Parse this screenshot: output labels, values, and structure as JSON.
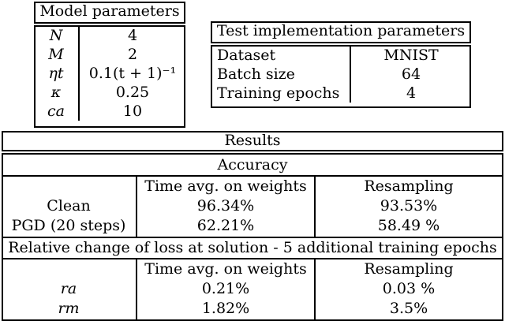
{
  "model_params": {
    "title": "Model parameters",
    "rows": [
      {
        "symbol": "N",
        "value": "4"
      },
      {
        "symbol": "M",
        "value": "2"
      },
      {
        "symbol": "ηt",
        "value": "0.1(t + 1)⁻¹"
      },
      {
        "symbol": "κ",
        "value": "0.25"
      },
      {
        "symbol": "ca",
        "value": "10"
      }
    ]
  },
  "test_params": {
    "title": "Test implementation parameters",
    "rows": [
      {
        "key": "Dataset",
        "value": "MNIST"
      },
      {
        "key": "Batch size",
        "value": "64"
      },
      {
        "key": "Training epochs",
        "value": "4"
      }
    ]
  },
  "results": {
    "title": "Results",
    "accuracy": {
      "title": "Accuracy",
      "col1": "Time avg. on weights",
      "col2": "Resampling",
      "rows": [
        {
          "label": "Clean",
          "c1": "96.34%",
          "c2": "93.53%"
        },
        {
          "label": "PGD (20 steps)",
          "c1": "62.21%",
          "c2": "58.49 %"
        }
      ]
    },
    "loss": {
      "title": "Relative change of loss at solution - 5 additional training epochs",
      "col1": "Time avg. on weights",
      "col2": "Resampling",
      "rows": [
        {
          "label": "ra",
          "c1": "0.21%",
          "c2": "0.03 %"
        },
        {
          "label": "rm",
          "c1": "1.82%",
          "c2": "3.5%"
        }
      ]
    }
  }
}
